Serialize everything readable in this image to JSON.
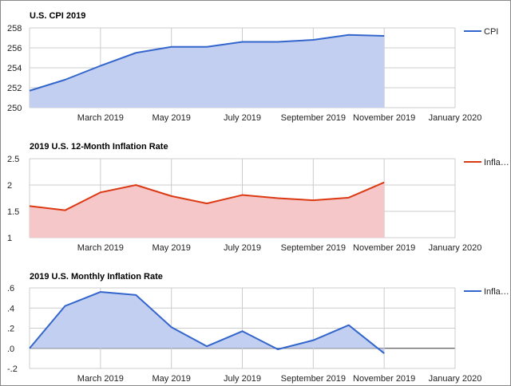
{
  "colors": {
    "blue": "#3366cc",
    "blue_fill": "#c3cff0",
    "red": "#dc3912",
    "red_fill": "#f5c7c9",
    "grid": "#cccccc",
    "zero": "#333333"
  },
  "chart_data": [
    {
      "type": "area",
      "title": "U.S. CPI 2019",
      "x": [
        "2019-01",
        "2019-02",
        "2019-03",
        "2019-04",
        "2019-05",
        "2019-06",
        "2019-07",
        "2019-08",
        "2019-09",
        "2019-10",
        "2019-11"
      ],
      "series": [
        {
          "name": "CPI",
          "values": [
            251.7,
            252.8,
            254.2,
            255.5,
            256.1,
            256.1,
            256.6,
            256.6,
            256.8,
            257.3,
            257.2
          ]
        }
      ],
      "ylim": [
        250,
        258
      ],
      "y_ticks": [
        "250",
        "252",
        "254",
        "256",
        "258"
      ],
      "x_ticks": [
        "March 2019",
        "May 2019",
        "July 2019",
        "September 2019",
        "November 2019",
        "January 2020"
      ],
      "legend": [
        "CPI"
      ],
      "legend_position": "right",
      "grid": true
    },
    {
      "type": "area",
      "title": "2019 U.S. 12-Month Inflation Rate",
      "x": [
        "2019-01",
        "2019-02",
        "2019-03",
        "2019-04",
        "2019-05",
        "2019-06",
        "2019-07",
        "2019-08",
        "2019-09",
        "2019-10",
        "2019-11"
      ],
      "series": [
        {
          "name": "Infla…",
          "values": [
            1.6,
            1.52,
            1.86,
            2.0,
            1.79,
            1.65,
            1.81,
            1.75,
            1.71,
            1.76,
            2.05
          ]
        }
      ],
      "ylim": [
        1,
        2.5
      ],
      "y_ticks": [
        "1",
        "1.5",
        "2",
        "2.5"
      ],
      "x_ticks": [
        "March 2019",
        "May 2019",
        "July 2019",
        "September 2019",
        "November 2019",
        "January 2020"
      ],
      "legend": [
        "Infla…"
      ],
      "legend_position": "right",
      "grid": true
    },
    {
      "type": "area",
      "title": "2019 U.S. Monthly Inflation Rate",
      "x": [
        "2019-01",
        "2019-02",
        "2019-03",
        "2019-04",
        "2019-05",
        "2019-06",
        "2019-07",
        "2019-08",
        "2019-09",
        "2019-10",
        "2019-11"
      ],
      "series": [
        {
          "name": "Infla…",
          "values": [
            0.0,
            0.42,
            0.56,
            0.53,
            0.21,
            0.02,
            0.17,
            -0.01,
            0.08,
            0.23,
            -0.05
          ]
        }
      ],
      "ylim": [
        -0.2,
        0.6
      ],
      "y_ticks": [
        "-.2",
        ".0",
        ".2",
        ".4",
        ".6"
      ],
      "x_ticks": [
        "March 2019",
        "May 2019",
        "July 2019",
        "September 2019",
        "November 2019",
        "January 2020"
      ],
      "legend": [
        "Infla…"
      ],
      "legend_position": "right",
      "grid": true
    }
  ]
}
